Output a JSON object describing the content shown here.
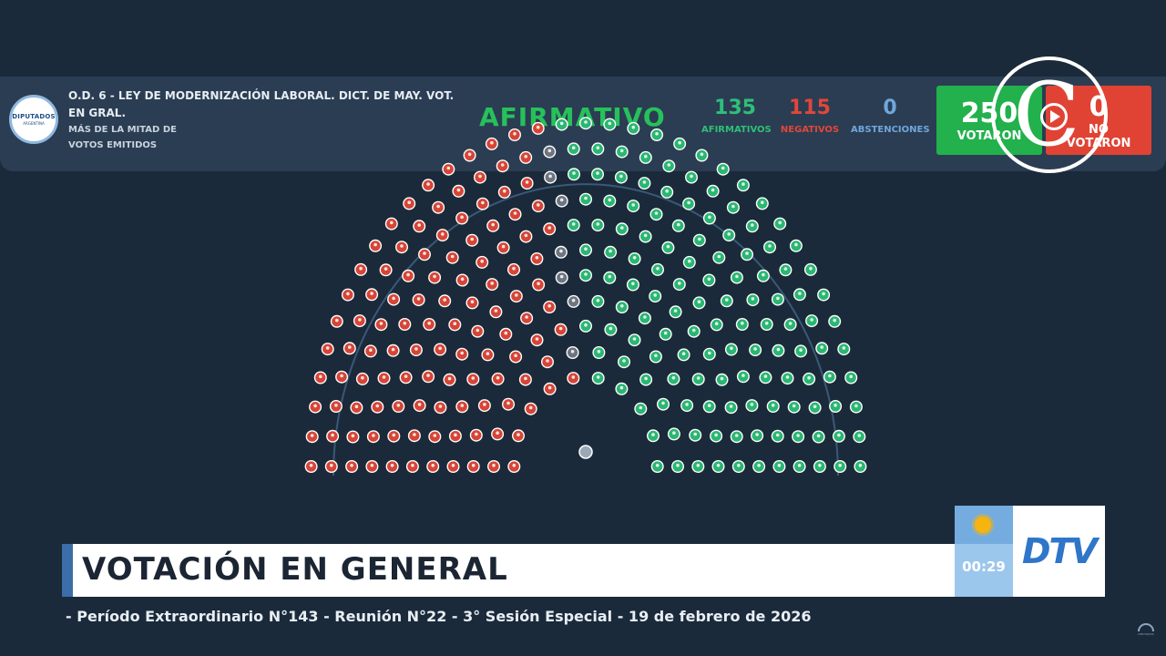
{
  "header": {
    "seal_text": "DIPUTADOS",
    "seal_subtext": "ARGENTINA",
    "bill_title": "O.D. 6 - LEY DE MODERNIZACIÓN LABORAL. DICT. DE MAY. VOT. EN GRAL.",
    "majority_rule": "MÁS DE LA MITAD DE VOTOS EMITIDOS",
    "result": "AFIRMATIVO",
    "stats": [
      {
        "value": "135",
        "label": "AFIRMATIVOS",
        "color": "#2fbf7a"
      },
      {
        "value": "115",
        "label": "NEGATIVOS",
        "color": "#e0473a"
      },
      {
        "value": "0",
        "label": "ABSTENCIONES",
        "color": "#6fa7dd"
      }
    ],
    "voted": {
      "value": "250",
      "label": "VOTARON",
      "color": "#22b14c"
    },
    "not_voted": {
      "value": "0",
      "label": "NO VOTARON",
      "color": "#e04334"
    }
  },
  "chamber": {
    "afirmativos": 135,
    "negativos": 115,
    "sin_voto": 7,
    "colors": {
      "afirmativo": "#2bb673",
      "negativo": "#d64537",
      "sin_voto": "#6d7580",
      "president": "#9aa8b8"
    }
  },
  "lower_third": {
    "title": "VOTACIÓN EN GENERAL",
    "clock": "00:29",
    "brand": "DTV"
  },
  "ticker": "- Período Extraordinario N°143 - Reunión N°22 - 3° Sesión Especial - 19 de febrero de 2026",
  "watermark_icon": "c-play-logo-icon",
  "corner_icon": "diputados-chamber-icon"
}
